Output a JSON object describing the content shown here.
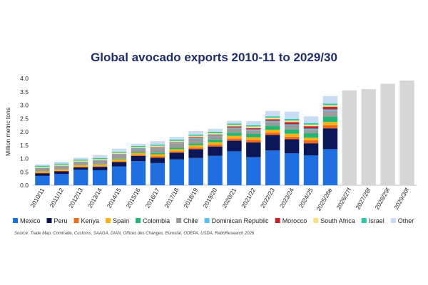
{
  "chart_data": {
    "type": "bar",
    "stacked": true,
    "title": "Global avocado exports 2010-11 to 2029/30",
    "ylabel": "Million metric tons",
    "xlabel": "",
    "ylim": [
      0,
      4.0
    ],
    "yticks": [
      "0.0",
      "0.5",
      "1.0",
      "1.5",
      "2.0",
      "2.5",
      "3.0",
      "3.5",
      "4.0"
    ],
    "grid": false,
    "legend_position": "bottom",
    "categories": [
      "2010/11",
      "2011/12",
      "2012/13",
      "2013/14",
      "2014/15",
      "2015/16",
      "2016/17",
      "2017/18",
      "2018/19",
      "2019/20",
      "2020/21",
      "2021/22",
      "2022/23",
      "2023/24",
      "2024/25",
      "2025/26e",
      "2026/27f",
      "2027/28f",
      "2028/29f",
      "2029/30f"
    ],
    "series": [
      {
        "name": "Mexico",
        "color": "#1f6fe0",
        "values": [
          0.35,
          0.42,
          0.58,
          0.56,
          0.7,
          0.9,
          0.83,
          0.97,
          1.02,
          1.1,
          1.27,
          1.05,
          1.3,
          1.2,
          1.12,
          1.35,
          null,
          null,
          null,
          null
        ]
      },
      {
        "name": "Peru",
        "color": "#0b1656",
        "values": [
          0.1,
          0.1,
          0.09,
          0.13,
          0.17,
          0.2,
          0.2,
          0.25,
          0.33,
          0.35,
          0.4,
          0.55,
          0.58,
          0.52,
          0.45,
          0.78,
          null,
          null,
          null,
          null
        ]
      },
      {
        "name": "Kenya",
        "color": "#f26b1d",
        "values": [
          0.02,
          0.02,
          0.02,
          0.02,
          0.03,
          0.04,
          0.05,
          0.05,
          0.06,
          0.07,
          0.08,
          0.1,
          0.09,
          0.1,
          0.11,
          0.12,
          null,
          null,
          null,
          null
        ]
      },
      {
        "name": "Spain",
        "color": "#f7b217",
        "values": [
          0.05,
          0.05,
          0.06,
          0.06,
          0.07,
          0.07,
          0.08,
          0.08,
          0.09,
          0.09,
          0.1,
          0.1,
          0.11,
          0.11,
          0.1,
          0.12,
          null,
          null,
          null,
          null
        ]
      },
      {
        "name": "Colombia",
        "color": "#22b573",
        "values": [
          0.0,
          0.0,
          0.0,
          0.01,
          0.02,
          0.03,
          0.05,
          0.05,
          0.07,
          0.1,
          0.12,
          0.12,
          0.15,
          0.16,
          0.17,
          0.2,
          null,
          null,
          null,
          null
        ]
      },
      {
        "name": "Chile",
        "color": "#9b9b9b",
        "values": [
          0.12,
          0.13,
          0.12,
          0.14,
          0.16,
          0.12,
          0.18,
          0.17,
          0.17,
          0.13,
          0.16,
          0.13,
          0.14,
          0.15,
          0.12,
          0.22,
          null,
          null,
          null,
          null
        ]
      },
      {
        "name": "Dominican Republic",
        "color": "#5bc0eb",
        "values": [
          0.01,
          0.01,
          0.01,
          0.01,
          0.01,
          0.02,
          0.02,
          0.02,
          0.03,
          0.03,
          0.03,
          0.04,
          0.04,
          0.04,
          0.05,
          0.05,
          null,
          null,
          null,
          null
        ]
      },
      {
        "name": "Morocco",
        "color": "#c1272d",
        "values": [
          0.0,
          0.0,
          0.0,
          0.01,
          0.01,
          0.01,
          0.02,
          0.02,
          0.03,
          0.03,
          0.04,
          0.05,
          0.06,
          0.08,
          0.09,
          0.1,
          null,
          null,
          null,
          null
        ]
      },
      {
        "name": "South Africa",
        "color": "#f7e08a",
        "values": [
          0.04,
          0.04,
          0.04,
          0.04,
          0.04,
          0.04,
          0.05,
          0.05,
          0.05,
          0.05,
          0.06,
          0.06,
          0.06,
          0.06,
          0.06,
          0.06,
          null,
          null,
          null,
          null
        ]
      },
      {
        "name": "Israel",
        "color": "#2fc6a9",
        "values": [
          0.04,
          0.04,
          0.04,
          0.04,
          0.04,
          0.04,
          0.04,
          0.05,
          0.05,
          0.05,
          0.05,
          0.05,
          0.05,
          0.06,
          0.06,
          0.06,
          null,
          null,
          null,
          null
        ]
      },
      {
        "name": "Other",
        "color": "#c8dcf2",
        "values": [
          0.05,
          0.07,
          0.07,
          0.1,
          0.12,
          0.08,
          0.13,
          0.1,
          0.13,
          0.11,
          0.1,
          0.15,
          0.2,
          0.27,
          0.25,
          0.28,
          null,
          null,
          null,
          null
        ]
      },
      {
        "name": "",
        "color": "#d6d6d6",
        "values": [
          null,
          null,
          null,
          null,
          null,
          null,
          null,
          null,
          null,
          null,
          null,
          null,
          null,
          null,
          null,
          null,
          3.55,
          3.6,
          3.8,
          3.92
        ]
      }
    ]
  },
  "source": "Source: Trade Map, Comtrade, Customs, SAAGA, DIAN, Offices des Changes, Eurostat, ODEPA, USDA, RaboResearch 2026"
}
